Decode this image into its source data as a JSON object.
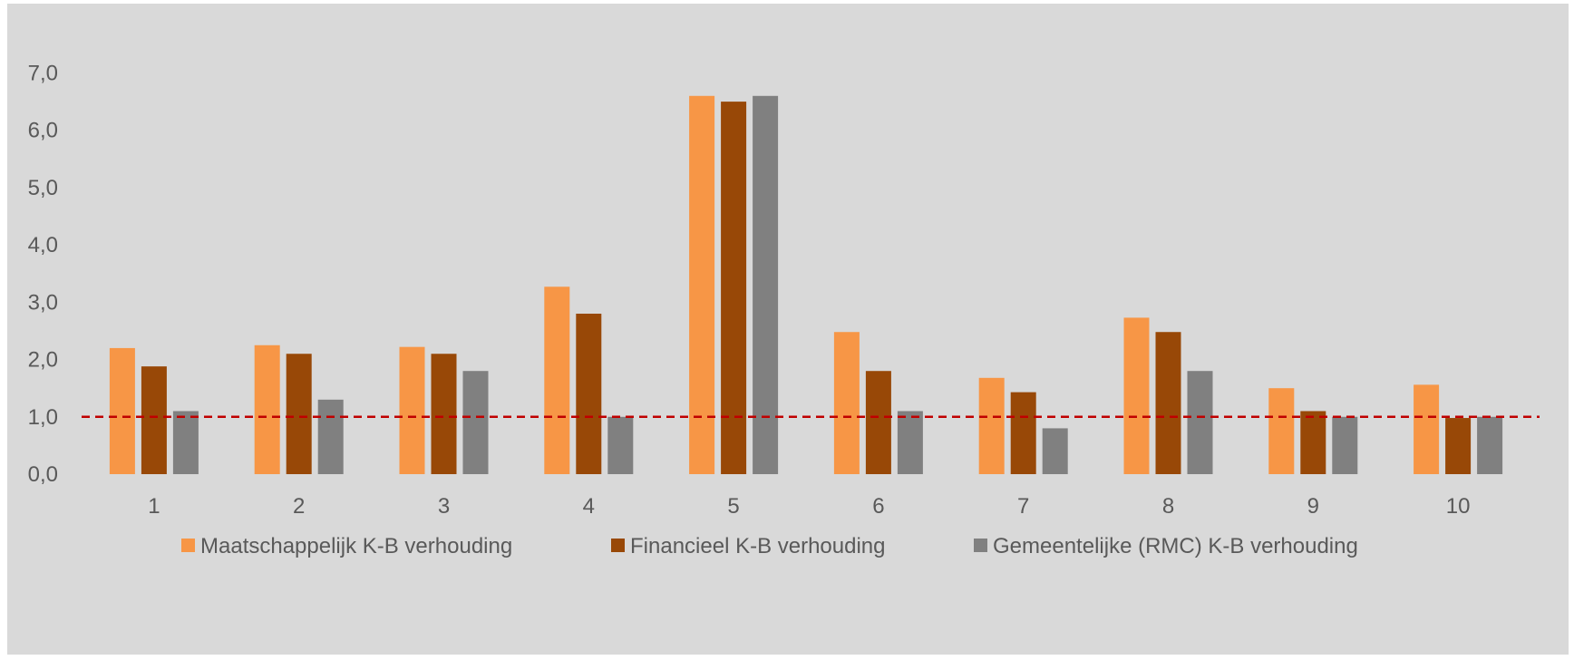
{
  "chart_data": {
    "type": "bar",
    "categories": [
      "1",
      "2",
      "3",
      "4",
      "5",
      "6",
      "7",
      "8",
      "9",
      "10"
    ],
    "series": [
      {
        "name": "Maatschappelijk K-B verhouding",
        "color": "#f79646",
        "values": [
          2.2,
          2.25,
          2.22,
          3.27,
          6.6,
          2.48,
          1.68,
          2.73,
          1.5,
          1.56
        ]
      },
      {
        "name": "Financieel K-B verhouding",
        "color": "#984807",
        "values": [
          1.88,
          2.1,
          2.1,
          2.8,
          6.5,
          1.8,
          1.43,
          2.48,
          1.1,
          0.98
        ]
      },
      {
        "name": "Gemeentelijke (RMC) K-B verhouding",
        "color": "#808080",
        "values": [
          1.1,
          1.3,
          1.8,
          1.0,
          6.6,
          1.1,
          0.8,
          1.8,
          1.0,
          1.0
        ]
      }
    ],
    "yticks": [
      "0,0",
      "1,0",
      "2,0",
      "3,0",
      "4,0",
      "5,0",
      "6,0",
      "7,0"
    ],
    "ylim": [
      0,
      7.0
    ],
    "reference_line": {
      "value": 1.0,
      "style": "dashed",
      "color": "#c00000"
    },
    "grid": false,
    "legend_position": "bottom",
    "title": "",
    "xlabel": "",
    "ylabel": ""
  }
}
